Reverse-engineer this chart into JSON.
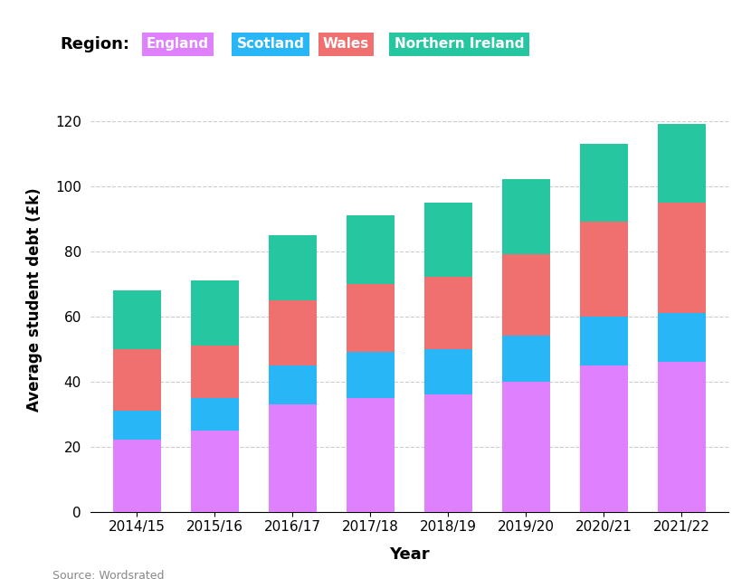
{
  "years": [
    "2014/15",
    "2015/16",
    "2016/17",
    "2017/18",
    "2018/19",
    "2019/20",
    "2020/21",
    "2021/22"
  ],
  "england": [
    22,
    25,
    33,
    35,
    36,
    40,
    45,
    46
  ],
  "scotland": [
    9,
    10,
    12,
    14,
    14,
    14,
    15,
    15
  ],
  "wales": [
    19,
    16,
    20,
    21,
    22,
    25,
    29,
    34
  ],
  "northern_ireland": [
    18,
    20,
    20,
    21,
    23,
    23,
    24,
    24
  ],
  "colors": {
    "england": "#df80ff",
    "scotland": "#29b6f6",
    "wales": "#f07070",
    "northern_ireland": "#26c6a0"
  },
  "legend_labels": [
    "England",
    "Scotland",
    "Wales",
    "Northern Ireland"
  ],
  "legend_colors": [
    "#df80ff",
    "#29b6f6",
    "#f07070",
    "#26c6a0"
  ],
  "ylabel": "Average student debt (£k)",
  "xlabel": "Year",
  "source": "Source: Wordsrated",
  "ylim": [
    0,
    130
  ],
  "yticks": [
    0,
    20,
    40,
    60,
    80,
    100,
    120
  ],
  "background_color": "#ffffff",
  "region_label": "Region:",
  "bar_width": 0.62
}
